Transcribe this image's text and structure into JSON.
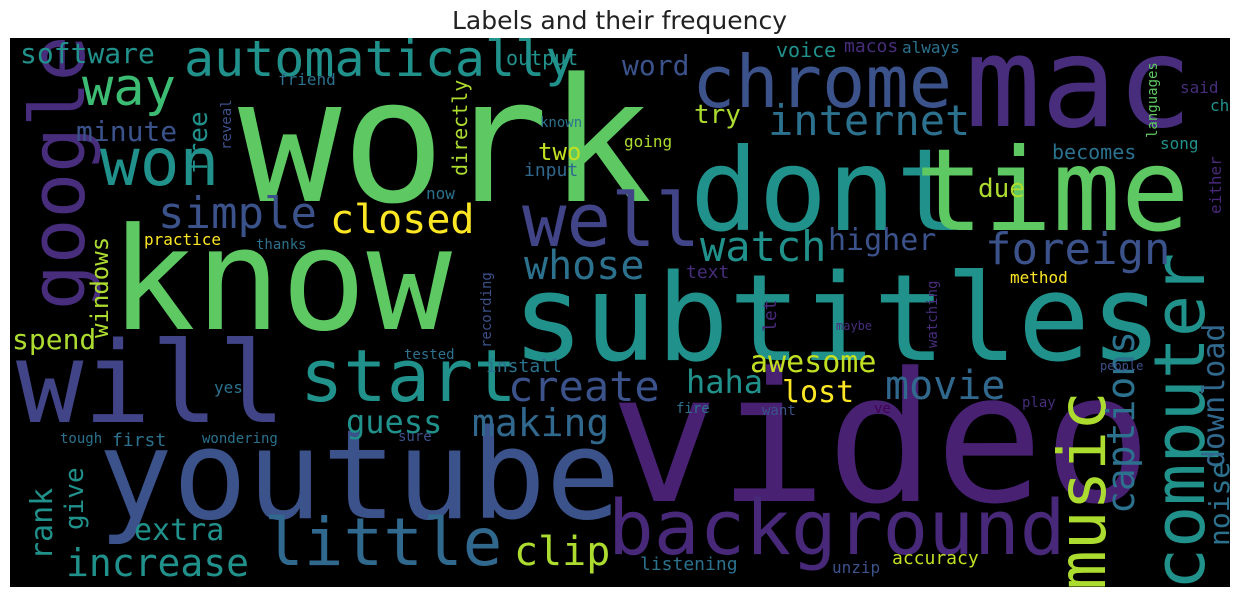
{
  "title": "Labels and their frequency",
  "palette": {
    "green": "#5ec962",
    "teal": "#21918c",
    "teal_light": "#28ae80",
    "blue": "#3b528b",
    "blue_mid": "#2c728e",
    "purple": "#472d7b",
    "purple_dark": "#440154",
    "yellow": "#fde725",
    "lime": "#addc30"
  },
  "words": [
    {
      "text": "work",
      "color": "#5ec962"
    },
    {
      "text": "mac",
      "color": "#472d7b"
    },
    {
      "text": "know",
      "color": "#5ec962"
    },
    {
      "text": "video",
      "color": "#482173"
    },
    {
      "text": "subtitles",
      "color": "#21918c"
    },
    {
      "text": "dont",
      "color": "#21918c"
    },
    {
      "text": "time",
      "color": "#5ec962"
    },
    {
      "text": "youtube",
      "color": "#3b528b"
    },
    {
      "text": "will",
      "color": "#414487"
    },
    {
      "text": "google",
      "color": "#472d7b"
    },
    {
      "text": "chrome",
      "color": "#3b528b"
    },
    {
      "text": "background",
      "color": "#482878"
    },
    {
      "text": "start",
      "color": "#21918c"
    },
    {
      "text": "little",
      "color": "#31688e"
    },
    {
      "text": "well",
      "color": "#414487"
    },
    {
      "text": "computer",
      "color": "#21918c"
    },
    {
      "text": "music",
      "color": "#addc30"
    },
    {
      "text": "automatically",
      "color": "#21918c"
    },
    {
      "text": "won",
      "color": "#21918c"
    },
    {
      "text": "way",
      "color": "#3dbc74"
    },
    {
      "text": "internet",
      "color": "#2c728e"
    },
    {
      "text": "foreign",
      "color": "#3b528b"
    },
    {
      "text": "watch",
      "color": "#21918c"
    },
    {
      "text": "whose",
      "color": "#2c728e"
    },
    {
      "text": "simple",
      "color": "#3b528b"
    },
    {
      "text": "closed",
      "color": "#fde725"
    },
    {
      "text": "create",
      "color": "#3b528b"
    },
    {
      "text": "movie",
      "color": "#31688e"
    },
    {
      "text": "making",
      "color": "#31688e"
    },
    {
      "text": "increase",
      "color": "#21918c"
    },
    {
      "text": "clip",
      "color": "#addc30"
    },
    {
      "text": "captions",
      "color": "#2c728e"
    },
    {
      "text": "download",
      "color": "#31688e"
    },
    {
      "text": "noise",
      "color": "#2c728e"
    },
    {
      "text": "higher",
      "color": "#3b528b"
    },
    {
      "text": "haha",
      "color": "#21918c"
    },
    {
      "text": "awesome",
      "color": "#c2df23"
    },
    {
      "text": "lost",
      "color": "#fde725"
    },
    {
      "text": "guess",
      "color": "#21918c"
    },
    {
      "text": "extra",
      "color": "#21918c"
    },
    {
      "text": "rank",
      "color": "#21918c"
    },
    {
      "text": "give",
      "color": "#21918c"
    },
    {
      "text": "spend",
      "color": "#addc30"
    },
    {
      "text": "windows",
      "color": "#addc30"
    },
    {
      "text": "free",
      "color": "#21918c"
    },
    {
      "text": "minute",
      "color": "#3b528b"
    },
    {
      "text": "software",
      "color": "#21918c"
    },
    {
      "text": "two",
      "color": "#c2df23"
    },
    {
      "text": "try",
      "color": "#addc30"
    },
    {
      "text": "word",
      "color": "#3b528b"
    },
    {
      "text": "due",
      "color": "#addc30"
    },
    {
      "text": "voice",
      "color": "#21918c"
    },
    {
      "text": "macos",
      "color": "#472d7b"
    },
    {
      "text": "always",
      "color": "#2c728e"
    },
    {
      "text": "output",
      "color": "#21918c"
    },
    {
      "text": "friend",
      "color": "#2c728e"
    },
    {
      "text": "reveal",
      "color": "#3b528b"
    },
    {
      "text": "directly",
      "color": "#addc30"
    },
    {
      "text": "known",
      "color": "#2c728e"
    },
    {
      "text": "going",
      "color": "#addc30"
    },
    {
      "text": "input",
      "color": "#31688e"
    },
    {
      "text": "becomes",
      "color": "#2c728e"
    },
    {
      "text": "song",
      "color": "#21918c"
    },
    {
      "text": "languages",
      "color": "#5ec962"
    },
    {
      "text": "said",
      "color": "#472d7b"
    },
    {
      "text": "ch",
      "color": "#21918c"
    },
    {
      "text": "either",
      "color": "#482878"
    },
    {
      "text": "now",
      "color": "#2c728e"
    },
    {
      "text": "practice",
      "color": "#fde725"
    },
    {
      "text": "thanks",
      "color": "#2c728e"
    },
    {
      "text": "text",
      "color": "#472d7b"
    },
    {
      "text": "method",
      "color": "#fde725"
    },
    {
      "text": "recording",
      "color": "#3b528b"
    },
    {
      "text": "let",
      "color": "#482878"
    },
    {
      "text": "watching",
      "color": "#472d7b"
    },
    {
      "text": "maybe",
      "color": "#472d7b"
    },
    {
      "text": "install",
      "color": "#2c728e"
    },
    {
      "text": "tested",
      "color": "#2c728e"
    },
    {
      "text": "yes",
      "color": "#2c728e"
    },
    {
      "text": "people",
      "color": "#3b528b"
    },
    {
      "text": "fire",
      "color": "#2c728e"
    },
    {
      "text": "want",
      "color": "#3b528b"
    },
    {
      "text": "ve",
      "color": "#440154"
    },
    {
      "text": "play",
      "color": "#472d7b"
    },
    {
      "text": "first",
      "color": "#2c728e"
    },
    {
      "text": "sure",
      "color": "#3b528b"
    },
    {
      "text": "tough",
      "color": "#2c728e"
    },
    {
      "text": "wondering",
      "color": "#2c728e"
    },
    {
      "text": "listening",
      "color": "#2c728e"
    },
    {
      "text": "unzip",
      "color": "#3b528b"
    },
    {
      "text": "accuracy",
      "color": "#c2df23"
    }
  ]
}
